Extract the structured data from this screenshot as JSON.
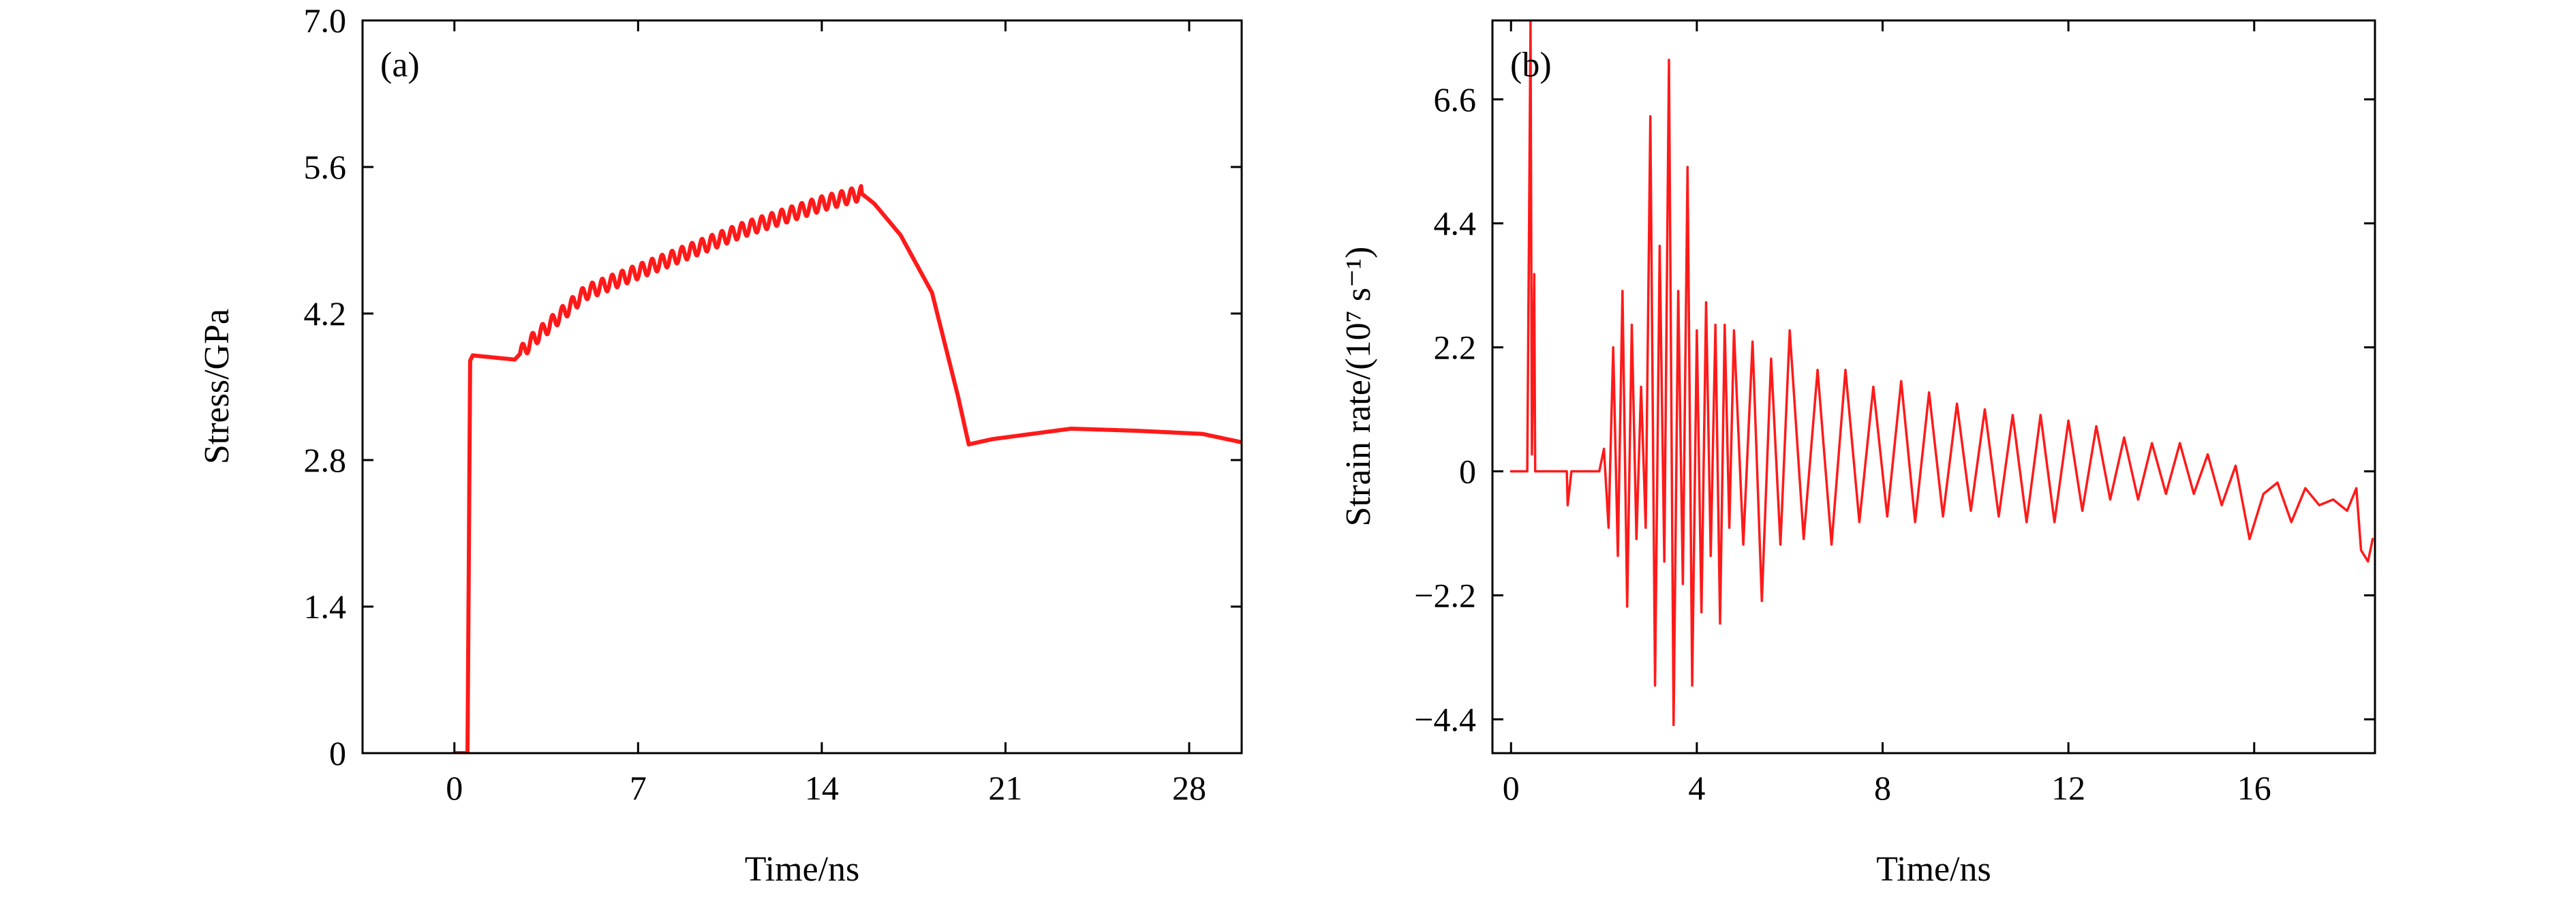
{
  "chart_data": [
    {
      "type": "line",
      "panel": "(a)",
      "xlabel": "Time/ns",
      "ylabel": "Stress/GPa",
      "xlim": [
        -3.5,
        30
      ],
      "ylim": [
        0,
        7.0
      ],
      "xticks": [
        0,
        7,
        14,
        21,
        28
      ],
      "yticks": [
        "0",
        "1.4",
        "2.8",
        "4.2",
        "5.6",
        "7.0"
      ],
      "line_color": "#ff1a1a",
      "series": [
        {
          "x": [
            0,
            0.5,
            0.6,
            0.7,
            2.3,
            3.0,
            5.0,
            8.0,
            11.0,
            14.0,
            15.5,
            16.0,
            17.0,
            18.2,
            19.2,
            19.6,
            20.5,
            23.5,
            26.0,
            28.5,
            30.0
          ],
          "y": [
            0,
            0,
            3.75,
            3.8,
            3.76,
            3.95,
            4.4,
            4.7,
            5.0,
            5.25,
            5.35,
            5.25,
            4.95,
            4.4,
            3.4,
            2.95,
            3.0,
            3.1,
            3.08,
            3.05,
            2.97
          ],
          "oscillation": {
            "from": 2.5,
            "to": 15.5,
            "period": 0.38,
            "amplitude": 0.07
          }
        }
      ]
    },
    {
      "type": "line",
      "panel": "(b)",
      "xlabel": "Time/ns",
      "ylabel": "Strain rate/(10⁷ s⁻¹)",
      "xlim": [
        -0.4,
        18.6
      ],
      "ylim": [
        -5.0,
        8.0
      ],
      "xticks": [
        0,
        4,
        8,
        12,
        16
      ],
      "yticks": [
        "−4.4",
        "−2.2",
        "0",
        "2.2",
        "4.4",
        "6.6"
      ],
      "line_color": "#ff1a1a",
      "series": [
        {
          "x": [
            0,
            0.35,
            0.42,
            0.45,
            0.5,
            0.52,
            1.2,
            1.22,
            1.3,
            1.9,
            2.0,
            2.1,
            2.2,
            2.3,
            2.4,
            2.5,
            2.6,
            2.7,
            2.8,
            2.9,
            3.0,
            3.1,
            3.2,
            3.3,
            3.4,
            3.5,
            3.6,
            3.7,
            3.8,
            3.9,
            4.0,
            4.1,
            4.2,
            4.3,
            4.4,
            4.5,
            4.6,
            4.7,
            4.8,
            5.0,
            5.2,
            5.4,
            5.6,
            5.8,
            6.0,
            6.3,
            6.6,
            6.9,
            7.2,
            7.5,
            7.8,
            8.1,
            8.4,
            8.7,
            9.0,
            9.3,
            9.6,
            9.9,
            10.2,
            10.5,
            10.8,
            11.1,
            11.4,
            11.7,
            12.0,
            12.3,
            12.6,
            12.9,
            13.2,
            13.5,
            13.8,
            14.1,
            14.4,
            14.7,
            15.0,
            15.3,
            15.6,
            15.9,
            16.2,
            16.5,
            16.8,
            17.1,
            17.4,
            17.7,
            18.0,
            18.2,
            18.3,
            18.45,
            18.55
          ],
          "y": [
            0,
            0,
            8.0,
            0.3,
            3.5,
            0,
            0,
            -0.6,
            0,
            0,
            0.4,
            -1.0,
            2.2,
            -1.5,
            3.2,
            -2.4,
            2.6,
            -1.2,
            1.5,
            -1.0,
            6.3,
            -3.8,
            4.0,
            -1.6,
            7.3,
            -4.5,
            3.2,
            -2.0,
            5.4,
            -3.8,
            2.5,
            -2.5,
            3.0,
            -1.5,
            2.6,
            -2.7,
            2.6,
            -1.0,
            2.5,
            -1.3,
            2.3,
            -2.3,
            2.0,
            -1.3,
            2.5,
            -1.2,
            1.8,
            -1.3,
            1.8,
            -0.9,
            1.5,
            -0.8,
            1.6,
            -0.9,
            1.4,
            -0.8,
            1.2,
            -0.7,
            1.1,
            -0.8,
            1.0,
            -0.9,
            1.0,
            -0.9,
            0.9,
            -0.7,
            0.8,
            -0.5,
            0.6,
            -0.5,
            0.5,
            -0.4,
            0.5,
            -0.4,
            0.3,
            -0.6,
            0.1,
            -1.2,
            -0.4,
            -0.2,
            -0.9,
            -0.3,
            -0.6,
            -0.5,
            -0.7,
            -0.3,
            -1.4,
            -1.6,
            -1.2
          ]
        }
      ]
    }
  ]
}
